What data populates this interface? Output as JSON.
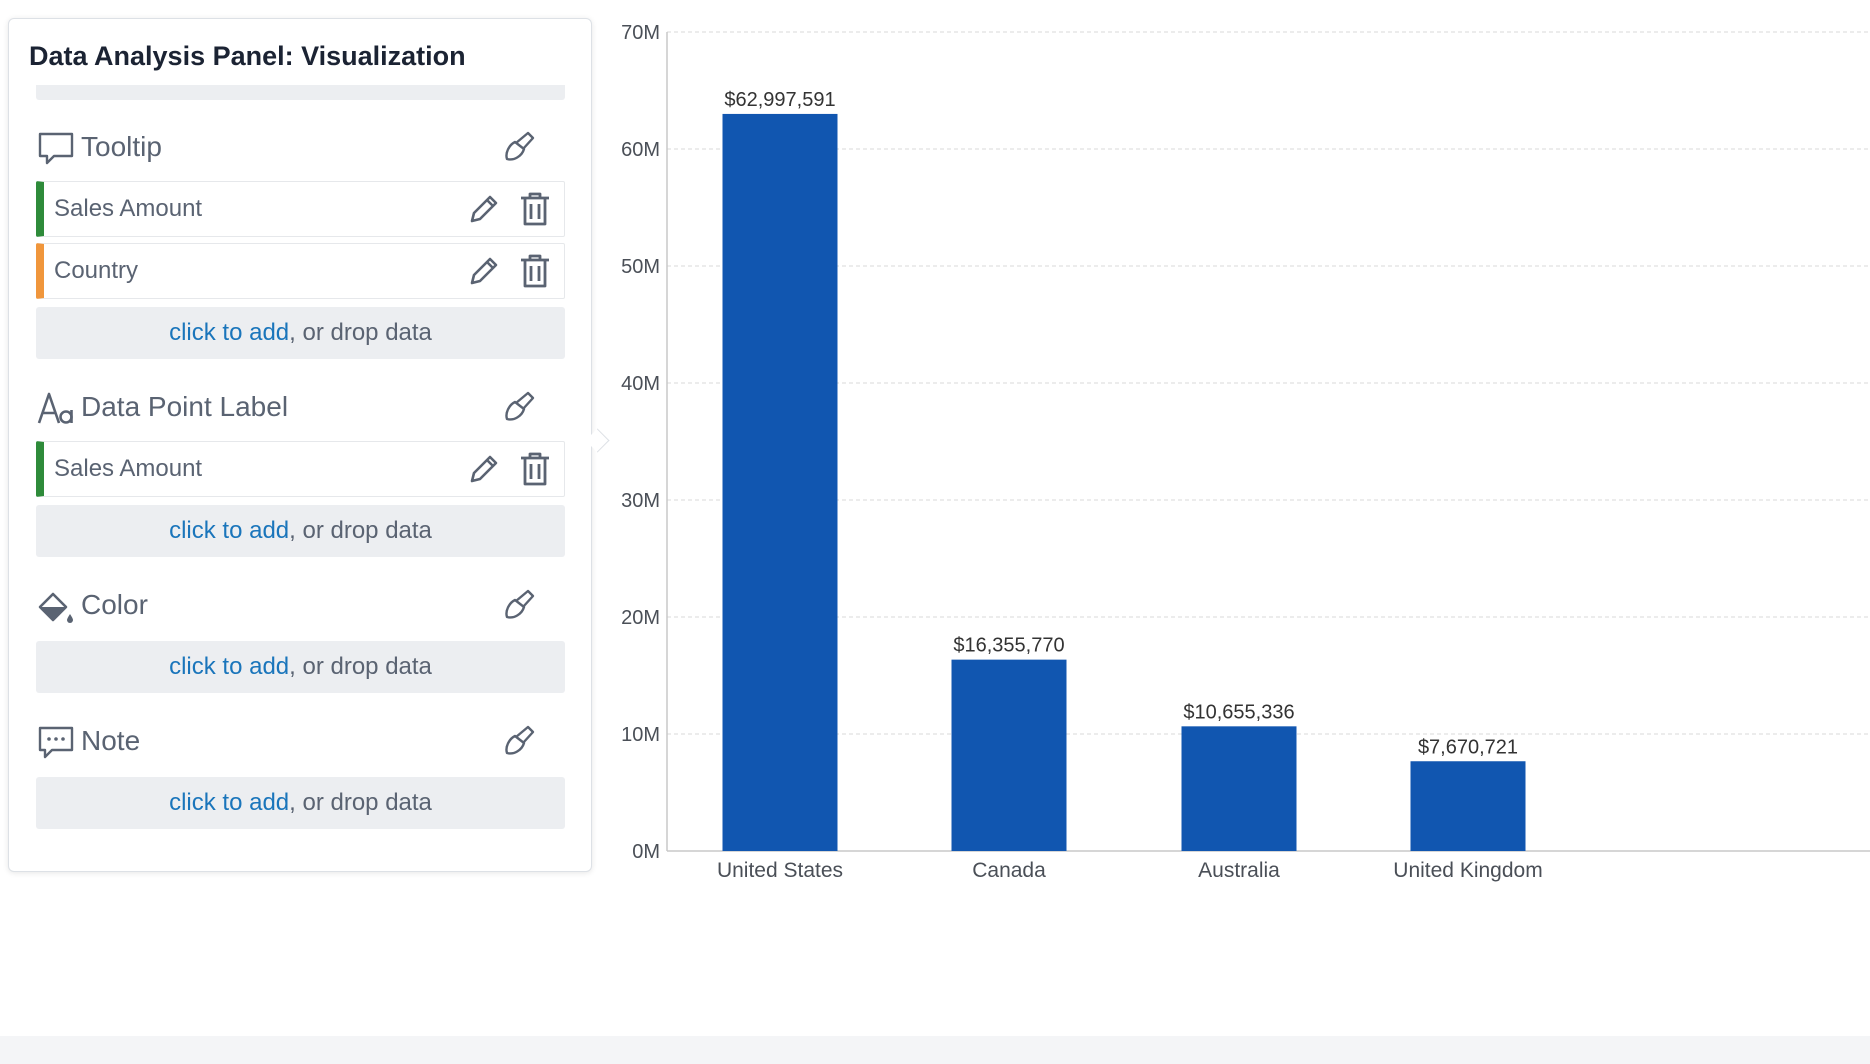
{
  "panel": {
    "title": "Data Analysis Panel: Visualization",
    "sections": {
      "tooltip": {
        "title": "Tooltip",
        "fields": [
          {
            "label": "Sales Amount",
            "type": "measure"
          },
          {
            "label": "Country",
            "type": "dimension"
          }
        ],
        "add_link": "click to add",
        "add_rest": ", or drop data"
      },
      "data_point_label": {
        "title": "Data Point Label",
        "fields": [
          {
            "label": "Sales Amount",
            "type": "measure"
          }
        ],
        "add_link": "click to add",
        "add_rest": ", or drop data"
      },
      "color": {
        "title": "Color",
        "add_link": "click to add",
        "add_rest": ", or drop data"
      },
      "note": {
        "title": "Note",
        "add_link": "click to add",
        "add_rest": ", or drop data"
      }
    }
  },
  "colors": {
    "bar": "#1156b0",
    "measure_accent": "#2e8b3a",
    "dimension_accent": "#f0963c",
    "link": "#1a75bb"
  },
  "chart_data": {
    "type": "bar",
    "categories": [
      "United States",
      "Canada",
      "Australia",
      "United Kingdom"
    ],
    "values": [
      62997591,
      16355770,
      10655336,
      7670721
    ],
    "data_labels": [
      "$62,997,591",
      "$16,355,770",
      "$10,655,336",
      "$7,670,721"
    ],
    "ytick_labels": [
      "0M",
      "10M",
      "20M",
      "30M",
      "40M",
      "50M",
      "60M",
      "70M"
    ],
    "yticks": [
      0,
      10000000,
      20000000,
      30000000,
      40000000,
      50000000,
      60000000,
      70000000
    ],
    "ylim": [
      0,
      70000000
    ],
    "grid": true,
    "title": "",
    "xlabel": "",
    "ylabel": ""
  }
}
